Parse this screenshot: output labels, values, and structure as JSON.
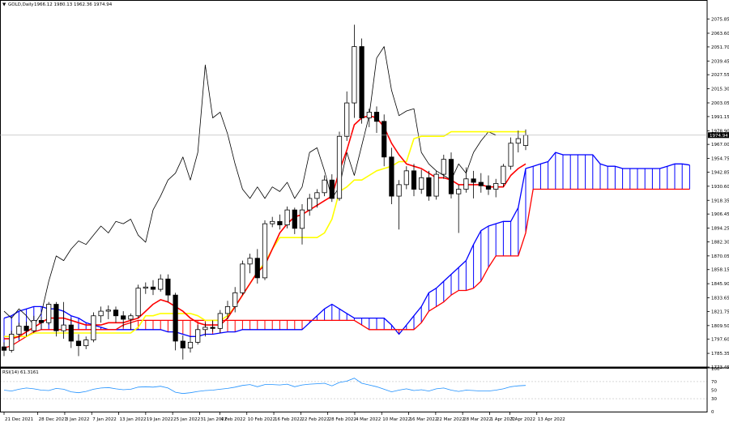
{
  "header": {
    "symbol": "GOLD,Daily",
    "ohlc": "1966.12 1980.13 1962.36 1974.94",
    "marker": "▼"
  },
  "last_price_label": "1974.94",
  "rsi_label": "RSI(14) 61.3161",
  "colors": {
    "tenkan": "#ff0000",
    "kijun": "#ffff00",
    "chikou": "#000000",
    "span_a": "#0000ff",
    "span_b": "#ff0000",
    "rsi": "#1e90ff",
    "candle_up": "#ffffff",
    "candle_down": "#000000"
  },
  "chart_data": [
    {
      "type": "candlestick",
      "title": "GOLD,Daily",
      "ylim": [
        1773.45,
        2087.55
      ],
      "price_ticks": [
        "2075.85",
        "2063.60",
        "2051.70",
        "2039.45",
        "2027.55",
        "2015.30",
        "2003.05",
        "1991.15",
        "1978.90",
        "1967.00",
        "1954.75",
        "1942.85",
        "1930.60",
        "1918.35",
        "1906.45",
        "1894.25",
        "1882.30",
        "1870.05",
        "1858.15",
        "1845.90",
        "1833.65",
        "1821.75",
        "1809.50",
        "1797.60",
        "1785.35",
        "1773.45"
      ],
      "date_ticks": [
        "21 Dec 2021",
        "28 Dec 2021",
        "3 Jan 2022",
        "7 Jan 2022",
        "13 Jan 2022",
        "19 Jan 2022",
        "25 Jan 2022",
        "31 Jan 2022",
        "4 Feb 2022",
        "10 Feb 2022",
        "16 Feb 2022",
        "22 Feb 2022",
        "28 Feb 2022",
        "4 Mar 2022",
        "10 Mar 2022",
        "16 Mar 2022",
        "22 Mar 2022",
        "28 Mar 2022",
        "1 Apr 2022",
        "7 Apr 2022",
        "13 Apr 2022"
      ],
      "candles": [
        [
          1791,
          1795,
          1783,
          1788
        ],
        [
          1788,
          1805,
          1786,
          1802
        ],
        [
          1802,
          1812,
          1798,
          1809
        ],
        [
          1809,
          1813,
          1800,
          1805
        ],
        [
          1805,
          1818,
          1803,
          1814
        ],
        [
          1814,
          1817,
          1806,
          1812
        ],
        [
          1812,
          1830,
          1810,
          1828
        ],
        [
          1828,
          1830,
          1800,
          1805
        ],
        [
          1805,
          1830,
          1798,
          1810
        ],
        [
          1810,
          1816,
          1790,
          1796
        ],
        [
          1796,
          1802,
          1783,
          1792
        ],
        [
          1792,
          1800,
          1789,
          1797
        ],
        [
          1797,
          1821,
          1795,
          1818
        ],
        [
          1818,
          1826,
          1812,
          1822
        ],
        [
          1822,
          1827,
          1815,
          1823
        ],
        [
          1823,
          1826,
          1812,
          1818
        ],
        [
          1818,
          1822,
          1808,
          1815
        ],
        [
          1815,
          1820,
          1806,
          1818
        ],
        [
          1818,
          1845,
          1816,
          1842
        ],
        [
          1842,
          1847,
          1837,
          1843
        ],
        [
          1843,
          1849,
          1836,
          1841
        ],
        [
          1841,
          1854,
          1839,
          1850
        ],
        [
          1850,
          1854,
          1830,
          1836
        ],
        [
          1836,
          1838,
          1788,
          1796
        ],
        [
          1796,
          1801,
          1780,
          1790
        ],
        [
          1790,
          1800,
          1786,
          1795
        ],
        [
          1795,
          1810,
          1793,
          1806
        ],
        [
          1806,
          1812,
          1800,
          1808
        ],
        [
          1808,
          1814,
          1804,
          1807
        ],
        [
          1807,
          1823,
          1803,
          1820
        ],
        [
          1820,
          1831,
          1815,
          1826
        ],
        [
          1826,
          1843,
          1821,
          1838
        ],
        [
          1838,
          1866,
          1836,
          1863
        ],
        [
          1863,
          1872,
          1855,
          1868
        ],
        [
          1868,
          1876,
          1846,
          1851
        ],
        [
          1851,
          1901,
          1849,
          1898
        ],
        [
          1898,
          1904,
          1895,
          1900
        ],
        [
          1900,
          1906,
          1893,
          1897
        ],
        [
          1897,
          1913,
          1894,
          1910
        ],
        [
          1910,
          1912,
          1889,
          1894
        ],
        [
          1894,
          1915,
          1880,
          1910
        ],
        [
          1910,
          1924,
          1905,
          1920
        ],
        [
          1920,
          1928,
          1912,
          1925
        ],
        [
          1925,
          1940,
          1922,
          1936
        ],
        [
          1936,
          1941,
          1917,
          1920
        ],
        [
          1920,
          1978,
          1918,
          1974
        ],
        [
          1974,
          2013,
          1970,
          2003
        ],
        [
          2003,
          2071,
          1990,
          2052
        ],
        [
          2052,
          2059,
          1985,
          1990
        ],
        [
          1990,
          1998,
          1982,
          1995
        ],
        [
          1995,
          2000,
          1977,
          1987
        ],
        [
          1987,
          1993,
          1948,
          1956
        ],
        [
          1956,
          1964,
          1915,
          1922
        ],
        [
          1922,
          1936,
          1893,
          1932
        ],
        [
          1932,
          1948,
          1928,
          1944
        ],
        [
          1944,
          1950,
          1922,
          1928
        ],
        [
          1928,
          1945,
          1924,
          1938
        ],
        [
          1938,
          1944,
          1918,
          1922
        ],
        [
          1922,
          1944,
          1919,
          1941
        ],
        [
          1941,
          1958,
          1937,
          1954
        ],
        [
          1954,
          1960,
          1920,
          1924
        ],
        [
          1924,
          1932,
          1890,
          1928
        ],
        [
          1928,
          1947,
          1925,
          1937
        ],
        [
          1937,
          1944,
          1920,
          1934
        ],
        [
          1934,
          1942,
          1925,
          1931
        ],
        [
          1931,
          1940,
          1923,
          1928
        ],
        [
          1928,
          1937,
          1921,
          1933
        ],
        [
          1933,
          1950,
          1930,
          1948
        ],
        [
          1948,
          1973,
          1945,
          1968
        ],
        [
          1968,
          1979,
          1960,
          1972
        ],
        [
          1966,
          1980,
          1962,
          1975
        ]
      ],
      "tenkan": [
        1798,
        1798,
        1800,
        1804,
        1808,
        1812,
        1816,
        1816,
        1816,
        1814,
        1812,
        1810,
        1810,
        1810,
        1812,
        1812,
        1812,
        1814,
        1816,
        1822,
        1828,
        1832,
        1830,
        1826,
        1822,
        1816,
        1812,
        1810,
        1810,
        1810,
        1816,
        1826,
        1836,
        1846,
        1856,
        1862,
        1876,
        1890,
        1898,
        1904,
        1906,
        1910,
        1914,
        1918,
        1922,
        1944,
        1962,
        1984,
        1990,
        1992,
        1990,
        1982,
        1968,
        1958,
        1950,
        1948,
        1946,
        1942,
        1938,
        1938,
        1936,
        1932,
        1932,
        1932,
        1932,
        1930,
        1930,
        1930,
        1940,
        1946,
        1950
      ],
      "kijun": [
        1800,
        1800,
        1800,
        1800,
        1803,
        1803,
        1803,
        1803,
        1803,
        1803,
        1803,
        1803,
        1803,
        1803,
        1803,
        1803,
        1803,
        1803,
        1808,
        1818,
        1818,
        1820,
        1820,
        1820,
        1820,
        1820,
        1818,
        1814,
        1814,
        1814,
        1818,
        1826,
        1836,
        1846,
        1856,
        1864,
        1876,
        1886,
        1886,
        1886,
        1886,
        1886,
        1886,
        1890,
        1902,
        1926,
        1930,
        1936,
        1936,
        1940,
        1944,
        1946,
        1948,
        1952,
        1952,
        1972,
        1974,
        1974,
        1974,
        1974,
        1978,
        1978,
        1978,
        1978,
        1978,
        1978,
        1978,
        1978,
        1978,
        1978,
        1978
      ],
      "span_a": [
        1816,
        1818,
        1822,
        1824,
        1826,
        1826,
        1824,
        1824,
        1822,
        1818,
        1816,
        1812,
        1810,
        1808,
        1806,
        1806,
        1806,
        1806,
        1806,
        1806,
        1806,
        1806,
        1804,
        1804,
        1802,
        1800,
        1800,
        1802,
        1802,
        1803,
        1804,
        1804,
        1806,
        1806,
        1806,
        1806,
        1806,
        1806,
        1806,
        1806,
        1806,
        1812,
        1818,
        1824,
        1828,
        1824,
        1820,
        1816,
        1816,
        1816,
        1816,
        1816,
        1810,
        1802,
        1810,
        1818,
        1826,
        1838,
        1842,
        1848,
        1854,
        1860,
        1866,
        1880,
        1892,
        1896,
        1898,
        1900,
        1900,
        1912,
        1946,
        1948,
        1950,
        1952,
        1960,
        1958,
        1958,
        1958,
        1958,
        1958,
        1950,
        1948,
        1948,
        1946,
        1946,
        1946,
        1946,
        1946,
        1946,
        1948,
        1950,
        1950,
        1949
      ],
      "span_b": [
        1790,
        1792,
        1796,
        1800,
        1804,
        1806,
        1806,
        1806,
        1806,
        1806,
        1806,
        1806,
        1806,
        1806,
        1806,
        1806,
        1810,
        1812,
        1814,
        1814,
        1814,
        1814,
        1814,
        1814,
        1814,
        1814,
        1814,
        1814,
        1814,
        1814,
        1814,
        1814,
        1814,
        1814,
        1814,
        1814,
        1814,
        1814,
        1814,
        1814,
        1814,
        1814,
        1814,
        1814,
        1814,
        1814,
        1814,
        1814,
        1810,
        1806,
        1806,
        1806,
        1806,
        1806,
        1806,
        1806,
        1812,
        1822,
        1826,
        1830,
        1836,
        1840,
        1840,
        1842,
        1848,
        1860,
        1870,
        1870,
        1870,
        1870,
        1890,
        1928,
        1928,
        1928,
        1928,
        1928,
        1928,
        1928,
        1928,
        1928,
        1928,
        1928,
        1928,
        1928,
        1928,
        1928,
        1928,
        1928,
        1928,
        1928,
        1928,
        1928,
        1928
      ],
      "chikou": [
        1822,
        1816,
        1824,
        1818,
        1810,
        1820,
        1848,
        1870,
        1866,
        1876,
        1883,
        1880,
        1888,
        1896,
        1890,
        1900,
        1898,
        1902,
        1888,
        1882,
        1910,
        1922,
        1936,
        1942,
        1956,
        1936,
        1960,
        2036,
        1990,
        1995,
        1976,
        1950,
        1928,
        1920,
        1930,
        1920,
        1930,
        1926,
        1934,
        1920,
        1930,
        1960,
        1964,
        1944,
        1920,
        1930,
        1960,
        1940,
        1966,
        1992,
        2042,
        2052,
        2014,
        1992,
        1996,
        1998,
        1960,
        1950,
        1944,
        1940,
        1936,
        1950,
        1942,
        1960,
        1970,
        1978,
        1975
      ],
      "rsi": {
        "ylim": [
          0,
          100
        ],
        "ticks": [
          "100",
          "70",
          "50",
          "30",
          "0"
        ],
        "values": [
          50,
          48,
          52,
          55,
          53,
          50,
          49,
          54,
          52,
          46,
          44,
          47,
          52,
          55,
          56,
          53,
          51,
          52,
          57,
          58,
          57,
          59,
          55,
          45,
          42,
          44,
          47,
          49,
          50,
          52,
          54,
          57,
          61,
          63,
          58,
          63,
          63,
          62,
          64,
          58,
          62,
          64,
          65,
          66,
          60,
          68,
          71,
          78,
          66,
          62,
          58,
          52,
          46,
          50,
          53,
          49,
          51,
          48,
          53,
          55,
          50,
          47,
          50,
          49,
          48,
          48,
          50,
          53,
          58,
          60,
          61
        ]
      }
    }
  ]
}
